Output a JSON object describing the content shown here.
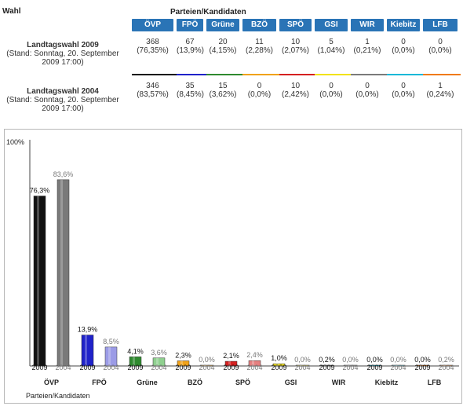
{
  "header": {
    "wahl_label": "Wahl",
    "parties_label": "Parteien/Kandidaten"
  },
  "parties": [
    {
      "name": "ÖVP",
      "color2009": "#111111",
      "color2004": "#7a7a7a"
    },
    {
      "name": "FPÖ",
      "color2009": "#1f22c9",
      "color2004": "#9b9be6"
    },
    {
      "name": "Grüne",
      "color2009": "#2f8a2f",
      "color2004": "#8fd08f"
    },
    {
      "name": "BZÖ",
      "color2009": "#f0a21a",
      "color2004": "#f6c675"
    },
    {
      "name": "SPÖ",
      "color2009": "#d52020",
      "color2004": "#e58080"
    },
    {
      "name": "GSI",
      "color2009": "#f2e21a",
      "color2004": "#f2ea8a"
    },
    {
      "name": "WIR",
      "color2009": "#7a7a7a",
      "color2004": "#c8c8c8"
    },
    {
      "name": "Kiebitz",
      "color2009": "#16b8d8",
      "color2004": "#8cdcec"
    },
    {
      "name": "LFB",
      "color2009": "#f07a18",
      "color2004": "#f5b37a"
    }
  ],
  "rows": [
    {
      "title": "Landtagswahl 2009",
      "subtitle": "(Stand: Sonntag, 20. September 2009 17:00)",
      "votes": [
        "368",
        "67",
        "20",
        "11",
        "10",
        "5",
        "1",
        "0",
        "0"
      ],
      "percents": [
        "(76,35%)",
        "(13,9%)",
        "(4,15%)",
        "(2,28%)",
        "(2,07%)",
        "(1,04%)",
        "(0,21%)",
        "(0,0%)",
        "(0,0%)"
      ]
    },
    {
      "title": "Landtagswahl 2004",
      "subtitle": "(Stand: Sonntag, 20. September 2009 17:00)",
      "votes": [
        "346",
        "35",
        "15",
        "0",
        "10",
        "0",
        "0",
        "0",
        "1"
      ],
      "percents": [
        "(83,57%)",
        "(8,45%)",
        "(3,62%)",
        "(0,0%)",
        "(2,42%)",
        "(0,0%)",
        "(0,0%)",
        "(0,0%)",
        "(0,24%)"
      ]
    }
  ],
  "chart_data": {
    "type": "bar",
    "title": "",
    "ylabel": "",
    "y_max_label": "100%",
    "xlabel": "Parteien/Kandidaten",
    "categories": [
      "ÖVP",
      "FPÖ",
      "Grüne",
      "BZÖ",
      "SPÖ",
      "GSI",
      "WIR",
      "Kiebitz",
      "LFB"
    ],
    "series": [
      {
        "name": "2009",
        "values": [
          76.3,
          13.9,
          4.1,
          2.3,
          2.1,
          1.0,
          0.2,
          0.0,
          0.0
        ],
        "labels": [
          "76,3%",
          "13,9%",
          "4,1%",
          "2,3%",
          "2,1%",
          "1,0%",
          "0,2%",
          "0,0%",
          "0,0%"
        ]
      },
      {
        "name": "2004",
        "values": [
          83.6,
          8.5,
          3.6,
          0.0,
          2.4,
          0.0,
          0.0,
          0.0,
          0.2
        ],
        "labels": [
          "83,6%",
          "8,5%",
          "3,6%",
          "0,0%",
          "2,4%",
          "0,0%",
          "0,0%",
          "0,0%",
          "0,2%"
        ]
      }
    ],
    "ylim": [
      0,
      100
    ]
  }
}
